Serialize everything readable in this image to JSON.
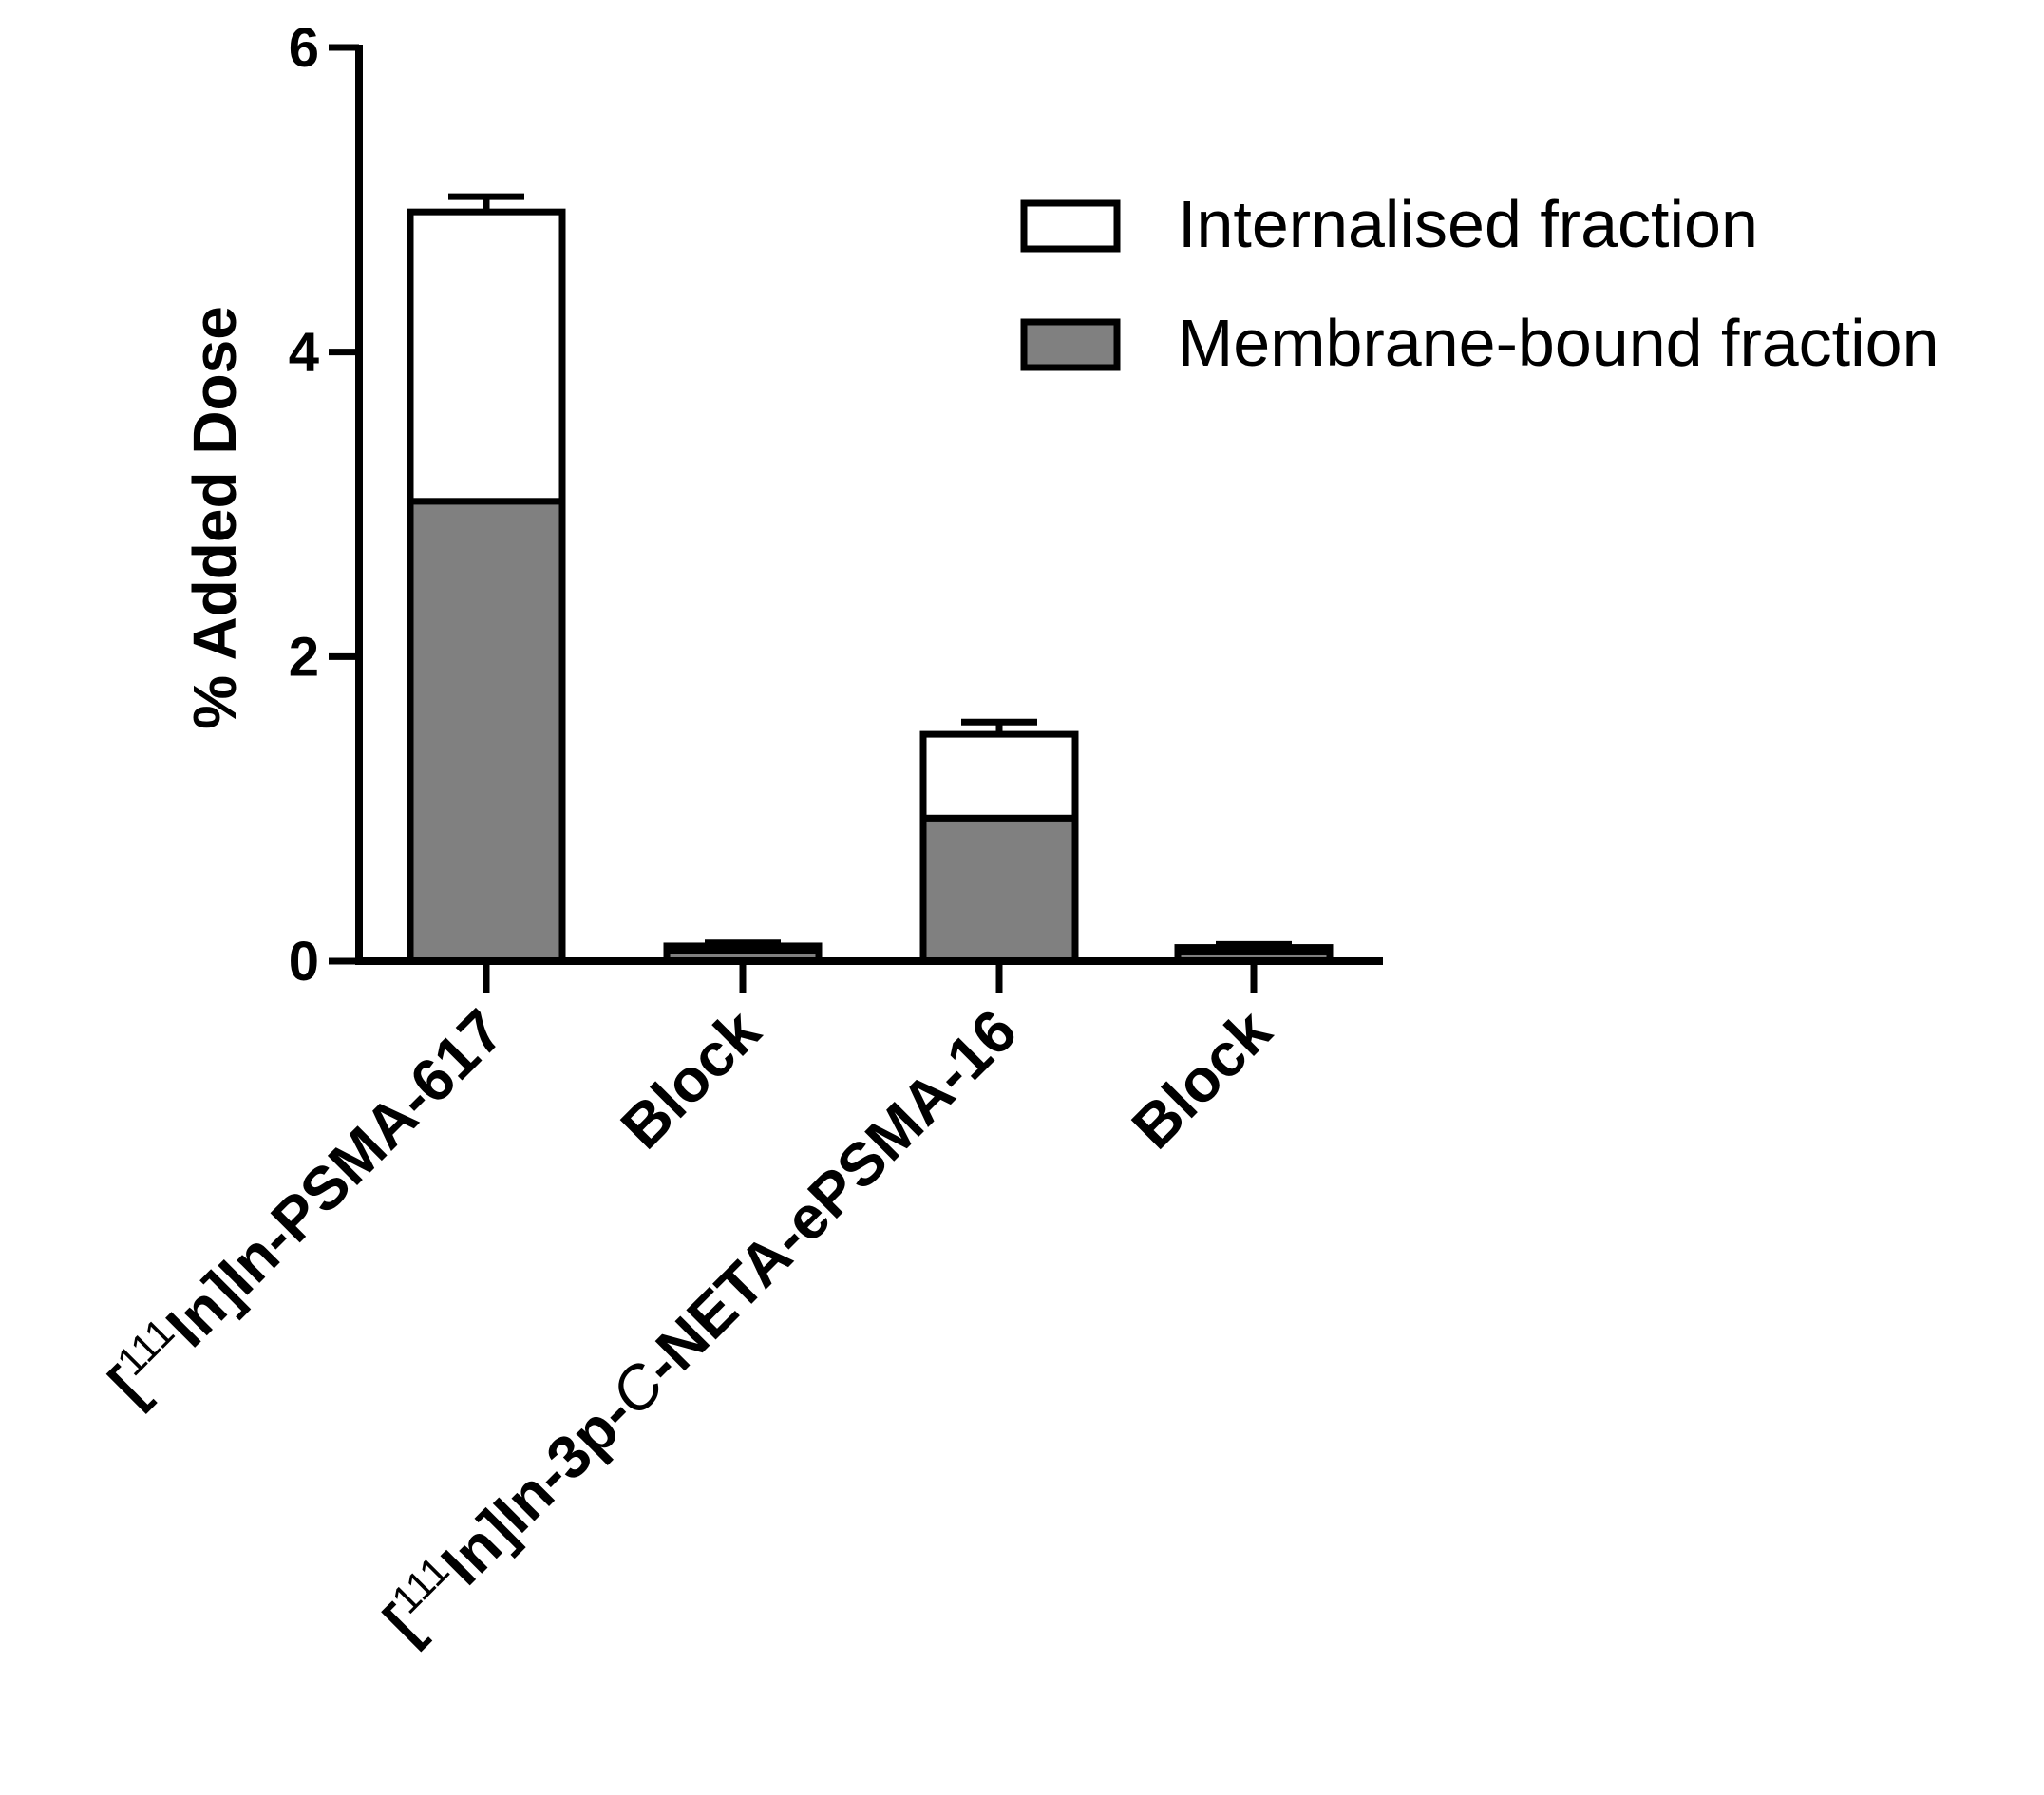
{
  "chart_data": {
    "type": "bar",
    "stacked": true,
    "ylabel": "% Added Dose",
    "xlabel": "",
    "ylim": [
      0,
      6
    ],
    "yticks": [
      0,
      2,
      4,
      6
    ],
    "categories": [
      "[111In]In-PSMA-617",
      "Block",
      "[111In]In-3p-C-NETA-ePSMA-16",
      "Block"
    ],
    "category_labels": [
      {
        "pre": "[",
        "sup": "111",
        "post": "In]In-PSMA-617",
        "italic": "",
        "tail": ""
      },
      {
        "pre": "Block",
        "sup": "",
        "post": "",
        "italic": "",
        "tail": ""
      },
      {
        "pre": "[",
        "sup": "111",
        "post": "In]In-3p-",
        "italic": "C",
        "tail": "-NETA-ePSMA-16"
      },
      {
        "pre": "Block",
        "sup": "",
        "post": "",
        "italic": "",
        "tail": ""
      }
    ],
    "series": [
      {
        "name": "Membrane-bound fraction",
        "color": "#808080",
        "values": [
          3.02,
          0.07,
          0.94,
          0.06
        ],
        "errors": [
          0.2,
          0.03,
          0.05,
          0.02
        ]
      },
      {
        "name": "Internalised fraction",
        "color": "#ffffff",
        "values": [
          1.9,
          0.03,
          0.55,
          0.03
        ],
        "errors": [
          0.1,
          0.02,
          0.08,
          0.02
        ]
      }
    ],
    "legend": {
      "position": "top-right"
    },
    "grid": false
  }
}
